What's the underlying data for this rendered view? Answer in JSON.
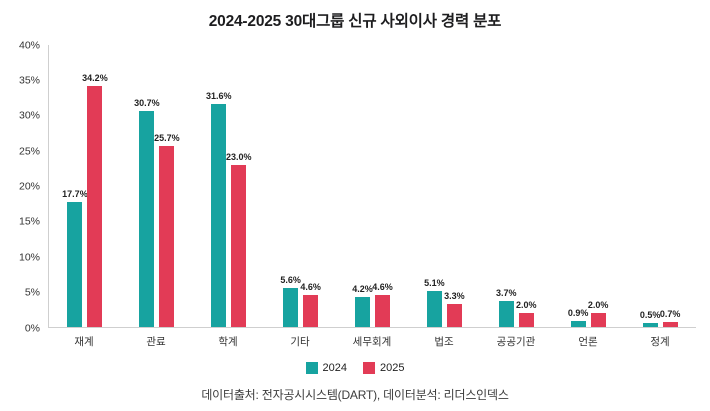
{
  "title": "2024-2025 30대그룹 신규 사외이사 경력 분포",
  "footer": "데이터출처: 전자공시시스템(DART), 데이터분석: 리더스인덱스",
  "colors": {
    "series_2024": "#17a3a0",
    "series_2025": "#e23b56",
    "axis_line": "#cfcfcf",
    "text": "#222222"
  },
  "chart_data": {
    "type": "bar",
    "title": "2024-2025 30대그룹 신규 사외이사 경력 분포",
    "categories": [
      "재계",
      "관료",
      "학계",
      "기타",
      "세무회계",
      "법조",
      "공공기관",
      "언론",
      "정계"
    ],
    "series": [
      {
        "name": "2024",
        "color": "#17a3a0",
        "values": [
          17.7,
          30.7,
          31.6,
          5.6,
          4.2,
          5.1,
          3.7,
          0.9,
          0.5
        ]
      },
      {
        "name": "2025",
        "color": "#e23b56",
        "values": [
          34.2,
          25.7,
          23.0,
          4.6,
          4.6,
          3.3,
          2.0,
          2.0,
          0.7
        ]
      }
    ],
    "xlabel": "",
    "ylabel": "",
    "ylim": [
      0,
      40
    ],
    "y_ticks": [
      0,
      5,
      10,
      15,
      20,
      25,
      30,
      35,
      40
    ],
    "y_tick_suffix": "%",
    "value_label_format": "one_decimal_percent",
    "grid": false,
    "legend_position": "bottom",
    "footnote": "데이터출처: 전자공시시스템(DART), 데이터분석: 리더스인덱스"
  }
}
